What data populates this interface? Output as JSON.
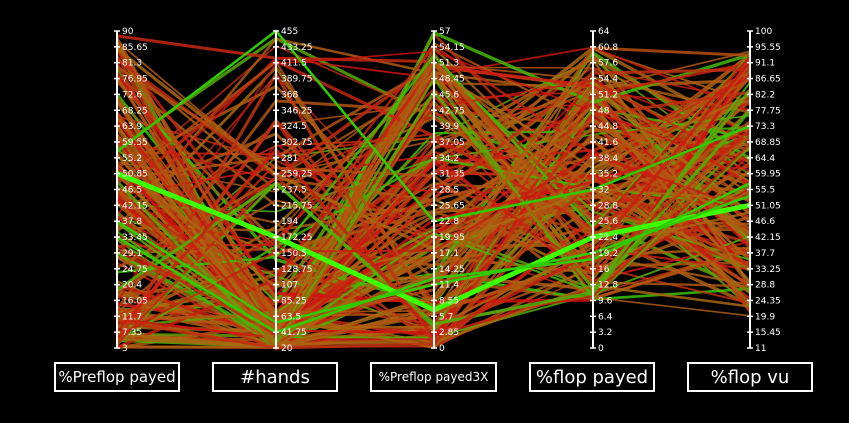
{
  "chart_data": {
    "type": "parallel-coordinates",
    "axes": [
      {
        "name": "%Preflop payed",
        "ticks": [
          "90",
          "85.65",
          "81.3",
          "76.95",
          "72.6",
          "68.25",
          "63.9",
          "59.55",
          "55.2",
          "50.85",
          "46.5",
          "42.15",
          "37.8",
          "33.45",
          "29.1",
          "24.75",
          "20.4",
          "16.05",
          "11.7",
          "7.35",
          "3"
        ],
        "range": [
          3,
          90
        ]
      },
      {
        "name": "#hands",
        "ticks": [
          "455",
          "433.25",
          "411.5",
          "389.75",
          "368",
          "346.25",
          "324.5",
          "302.75",
          "281",
          "259.25",
          "237.5",
          "215.75",
          "194",
          "172.25",
          "150.5",
          "128.75",
          "107",
          "85.25",
          "63.5",
          "41.75",
          "20"
        ],
        "range": [
          20,
          455
        ]
      },
      {
        "name": "%Preflop payed3X",
        "ticks": [
          "57",
          "54.15",
          "51.3",
          "48.45",
          "45.6",
          "42.75",
          "39.9",
          "37.05",
          "34.2",
          "31.35",
          "28.5",
          "25.65",
          "22.8",
          "19.95",
          "17.1",
          "14.25",
          "11.4",
          "8.55",
          "5.7",
          "2.85",
          "0"
        ],
        "range": [
          0,
          57
        ]
      },
      {
        "name": "%flop payed",
        "ticks": [
          "64",
          "60.8",
          "57.6",
          "54.4",
          "51.2",
          "48",
          "44.8",
          "41.6",
          "38.4",
          "35.2",
          "32",
          "28.8",
          "25.6",
          "22.4",
          "19.2",
          "16",
          "12.8",
          "9.6",
          "6.4",
          "3.2",
          "0"
        ],
        "range": [
          0,
          64
        ]
      },
      {
        "name": "%flop vu",
        "ticks": [
          "100",
          "95.55",
          "91.1",
          "86.65",
          "82.2",
          "77.75",
          "73.3",
          "68.85",
          "64.4",
          "59.95",
          "55.5",
          "51.05",
          "46.6",
          "42.15",
          "37.7",
          "33.25",
          "28.8",
          "24.35",
          "19.9",
          "15.45",
          "11"
        ],
        "range": [
          11,
          100
        ]
      }
    ],
    "colors": {
      "background": "#000000",
      "axis": "#ffffff",
      "low": "#d01010",
      "mid": "#a86a10",
      "high": "#2ecc00",
      "highlight": "#3cff00"
    }
  }
}
